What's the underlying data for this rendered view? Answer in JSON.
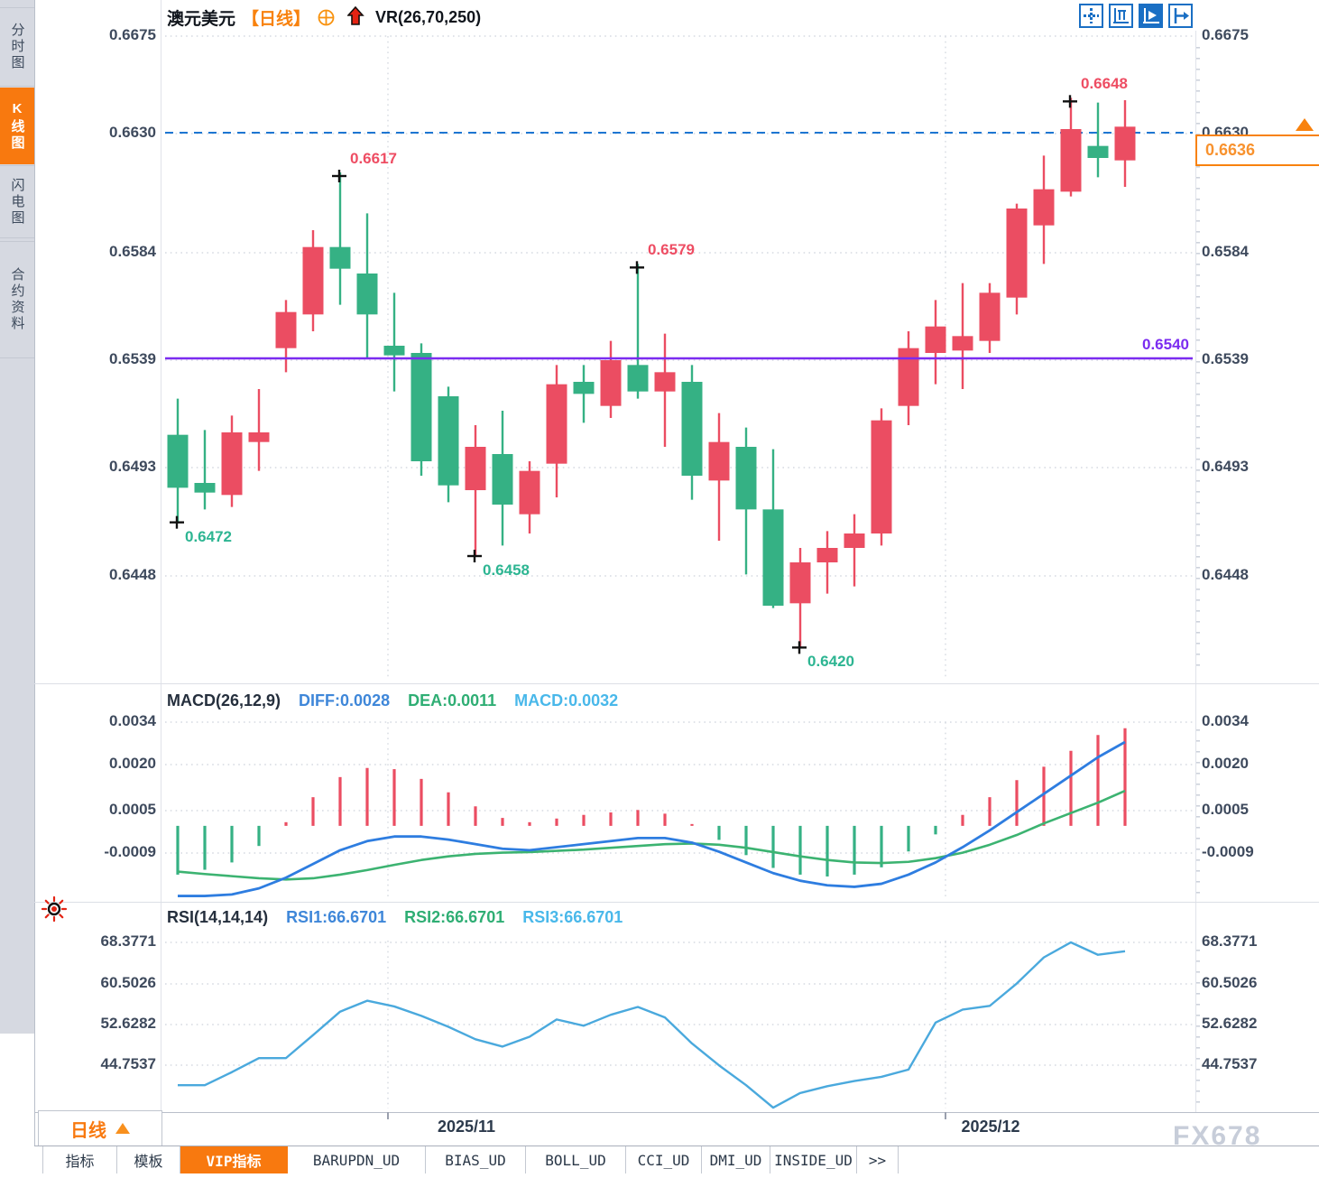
{
  "app": {
    "watermark": "FX678"
  },
  "sidebar": {
    "items": [
      {
        "label": "分时图",
        "active": false
      },
      {
        "label": "K线图",
        "active": true
      },
      {
        "label": "闪电图",
        "active": false
      },
      {
        "label": "合约资料",
        "active": false
      }
    ]
  },
  "header": {
    "symbol": "澳元美元",
    "period_tag": "【日线】",
    "indicator": "VR(26,70,250)"
  },
  "toolbar_icons": [
    "move-icon",
    "axis-scale-icon",
    "axis-play-icon",
    "shift-right-icon"
  ],
  "price_axis": {
    "labels": [
      "0.6675",
      "0.6630",
      "0.6584",
      "0.6539",
      "0.6493",
      "0.6448"
    ]
  },
  "lines": {
    "support": {
      "label": "0.6540",
      "price": 0.654,
      "color": "#7b2cf0"
    },
    "last": {
      "label": "0.6636",
      "price": 0.6636,
      "color": "#f8820e"
    }
  },
  "annotations": [
    {
      "label": "0.6617",
      "price": 0.6617,
      "candle": 6,
      "side": "high",
      "color": "#ee4d63"
    },
    {
      "label": "0.6648",
      "price": 0.6648,
      "candle": 33,
      "side": "high",
      "color": "#ee4d63"
    },
    {
      "label": "0.6579",
      "price": 0.6579,
      "candle": 17,
      "side": "high",
      "color": "#ee4d63"
    },
    {
      "label": "0.6472",
      "price": 0.6472,
      "candle": 0,
      "side": "low",
      "color": "#2db592"
    },
    {
      "label": "0.6458",
      "price": 0.6458,
      "candle": 11,
      "side": "low",
      "color": "#2db592"
    },
    {
      "label": "0.6420",
      "price": 0.642,
      "candle": 23,
      "side": "low",
      "color": "#2db592"
    }
  ],
  "macd_panel": {
    "title": "MACD(26,12,9)",
    "diff_label": "DIFF:0.0028",
    "dea_label": "DEA:0.0011",
    "macd_label": "MACD:0.0032",
    "axis_labels": [
      "0.0034",
      "0.0020",
      "0.0005",
      "-0.0009"
    ]
  },
  "rsi_panel": {
    "title": "RSI(14,14,14)",
    "rsi1_label": "RSI1:66.6701",
    "rsi2_label": "RSI2:66.6701",
    "rsi3_label": "RSI3:66.6701",
    "axis_labels": [
      "68.3771",
      "60.5026",
      "52.6282",
      "44.7537"
    ]
  },
  "bottom": {
    "period_button": "日线",
    "x_labels": [
      "2025/11",
      "2025/12"
    ],
    "tabs": [
      {
        "label": "指标",
        "active": false
      },
      {
        "label": "模板",
        "active": false
      },
      {
        "label": "VIP指标",
        "active": true
      },
      {
        "label": "BARUPDN_UD",
        "active": false
      },
      {
        "label": "BIAS_UD",
        "active": false
      },
      {
        "label": "BOLL_UD",
        "active": false
      },
      {
        "label": "CCI_UD",
        "active": false
      },
      {
        "label": "DMI_UD",
        "active": false
      },
      {
        "label": "INSIDE_UD",
        "active": false
      },
      {
        "label": ">>",
        "active": false
      }
    ]
  },
  "colors": {
    "up": "#eb4d62",
    "down": "#35b184",
    "diff_line": "#2e7de0",
    "dea_line": "#3cb371",
    "rsi_line": "#4aa9dd",
    "support_line": "#7b2cf0",
    "last_dash": "#1d76d2",
    "grid": "#d6dae2",
    "cross": "#111111"
  },
  "chart_data": [
    {
      "type": "candlestick",
      "title": "澳元美元 日线 (AUD/USD Daily)",
      "x_axis": {
        "labels": [
          "2025/11",
          "2025/12"
        ]
      },
      "y_axis": {
        "ticks": [
          0.6675,
          0.663,
          0.6584,
          0.6539,
          0.6493,
          0.6448
        ]
      },
      "support_line": 0.654,
      "last_price": 0.6636,
      "ohlc_order": [
        "open",
        "high",
        "low",
        "close"
      ],
      "candles": [
        [
          0.6508,
          0.6523,
          0.6472,
          0.6486
        ],
        [
          0.6488,
          0.651,
          0.6477,
          0.6484
        ],
        [
          0.6483,
          0.6516,
          0.6478,
          0.6509
        ],
        [
          0.6505,
          0.6527,
          0.6493,
          0.6509
        ],
        [
          0.6544,
          0.6564,
          0.6534,
          0.6559
        ],
        [
          0.6558,
          0.6593,
          0.6551,
          0.6586
        ],
        [
          0.6586,
          0.6617,
          0.6562,
          0.6577
        ],
        [
          0.6575,
          0.66,
          0.654,
          0.6558
        ],
        [
          0.6545,
          0.6567,
          0.6526,
          0.6541
        ],
        [
          0.6542,
          0.6546,
          0.6491,
          0.6497
        ],
        [
          0.6524,
          0.6528,
          0.648,
          0.6487
        ],
        [
          0.6485,
          0.6512,
          0.6458,
          0.6503
        ],
        [
          0.65,
          0.6518,
          0.6462,
          0.6479
        ],
        [
          0.6475,
          0.6497,
          0.6467,
          0.6493
        ],
        [
          0.6496,
          0.6537,
          0.6482,
          0.6529
        ],
        [
          0.653,
          0.6537,
          0.6513,
          0.6525
        ],
        [
          0.652,
          0.6547,
          0.6515,
          0.6539
        ],
        [
          0.6537,
          0.6579,
          0.6523,
          0.6526
        ],
        [
          0.6526,
          0.655,
          0.6503,
          0.6534
        ],
        [
          0.653,
          0.6537,
          0.6481,
          0.6491
        ],
        [
          0.6489,
          0.6517,
          0.6464,
          0.6505
        ],
        [
          0.6503,
          0.6511,
          0.645,
          0.6477
        ],
        [
          0.6477,
          0.6502,
          0.6436,
          0.6437
        ],
        [
          0.6438,
          0.6461,
          0.642,
          0.6455
        ],
        [
          0.6455,
          0.6468,
          0.6442,
          0.6461
        ],
        [
          0.6461,
          0.6475,
          0.6445,
          0.6467
        ],
        [
          0.6467,
          0.6519,
          0.6462,
          0.6514
        ],
        [
          0.652,
          0.6551,
          0.6512,
          0.6544
        ],
        [
          0.6542,
          0.6564,
          0.6529,
          0.6553
        ],
        [
          0.6543,
          0.6571,
          0.6527,
          0.6549
        ],
        [
          0.6547,
          0.6571,
          0.6542,
          0.6567
        ],
        [
          0.6565,
          0.6604,
          0.6558,
          0.6602
        ],
        [
          0.6595,
          0.6624,
          0.6579,
          0.661
        ],
        [
          0.6609,
          0.6648,
          0.6607,
          0.6635
        ],
        [
          0.6628,
          0.6646,
          0.6615,
          0.6623
        ],
        [
          0.6622,
          0.6647,
          0.6611,
          0.6636
        ]
      ]
    },
    {
      "type": "bar",
      "title": "MACD(26,12,9)",
      "y_axis": {
        "ticks": [
          0.0034,
          0.002,
          0.0005,
          -0.0009
        ]
      },
      "current": {
        "diff": 0.0028,
        "dea": 0.0011,
        "macd": 0.0032
      },
      "series": [
        {
          "name": "DIFF",
          "values": [
            -0.0023,
            -0.0023,
            -0.00225,
            -0.00205,
            -0.0017,
            -0.00125,
            -0.0008,
            -0.0005,
            -0.00035,
            -0.00035,
            -0.00045,
            -0.0006,
            -0.00075,
            -0.0008,
            -0.0007,
            -0.0006,
            -0.0005,
            -0.0004,
            -0.0004,
            -0.00055,
            -0.00085,
            -0.0012,
            -0.00155,
            -0.0018,
            -0.00195,
            -0.002,
            -0.0019,
            -0.0016,
            -0.0012,
            -0.0007,
            -0.00015,
            0.00045,
            0.00105,
            0.00165,
            0.00225,
            0.00275
          ]
        },
        {
          "name": "DEA",
          "values": [
            -0.0015,
            -0.00158,
            -0.00165,
            -0.00172,
            -0.00176,
            -0.00172,
            -0.0016,
            -0.00145,
            -0.00128,
            -0.00112,
            -0.001,
            -0.00092,
            -0.00088,
            -0.00086,
            -0.00082,
            -0.00078,
            -0.00072,
            -0.00066,
            -0.0006,
            -0.00058,
            -0.00062,
            -0.00072,
            -0.00086,
            -0.001,
            -0.00112,
            -0.0012,
            -0.00122,
            -0.00118,
            -0.00106,
            -0.00088,
            -0.00062,
            -0.0003,
            8e-05,
            0.00042,
            0.00076,
            0.00115
          ]
        },
        {
          "name": "MACD",
          "values": [
            -0.0016,
            -0.00144,
            -0.0012,
            -0.00066,
            0.00012,
            0.00094,
            0.0016,
            0.0019,
            0.00186,
            0.00154,
            0.0011,
            0.00064,
            0.00026,
            0.00012,
            0.00024,
            0.00036,
            0.00044,
            0.00052,
            0.0004,
            6e-05,
            -0.00046,
            -0.00096,
            -0.00138,
            -0.0016,
            -0.00166,
            -0.0016,
            -0.00136,
            -0.00084,
            -0.00028,
            0.00036,
            0.00094,
            0.0015,
            0.00194,
            0.00246,
            0.00298,
            0.0032
          ]
        }
      ]
    },
    {
      "type": "line",
      "title": "RSI(14,14,14)",
      "y_axis": {
        "ticks": [
          68.3771,
          60.5026,
          52.6282,
          44.7537
        ]
      },
      "current": {
        "rsi1": 66.6701,
        "rsi2": 66.6701,
        "rsi3": 66.6701
      },
      "values": [
        41.0,
        41.0,
        43.5,
        46.2,
        46.2,
        50.6,
        55.1,
        57.2,
        56.1,
        54.3,
        52.2,
        49.8,
        48.4,
        50.3,
        53.6,
        52.4,
        54.5,
        56.0,
        54.0,
        49.0,
        44.8,
        41.0,
        36.7,
        39.5,
        40.8,
        41.8,
        42.6,
        44.0,
        53.0,
        55.5,
        56.2,
        60.5,
        65.5,
        68.38,
        66.0,
        66.67
      ]
    }
  ]
}
